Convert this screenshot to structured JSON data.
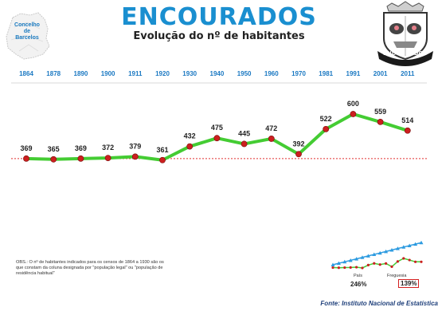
{
  "header": {
    "title": "ENCOURADOS",
    "subtitle": "Evolução do nº de habitantes"
  },
  "logo": {
    "line1": "Concelho",
    "line2": "de",
    "line3": "Barcelos"
  },
  "crest": {
    "label": "ENCOURADOS"
  },
  "chart_data": {
    "type": "line",
    "categories": [
      "1864",
      "1878",
      "1890",
      "1900",
      "1911",
      "1920",
      "1930",
      "1940",
      "1950",
      "1960",
      "1970",
      "1981",
      "1991",
      "2001",
      "2011"
    ],
    "values": [
      369,
      365,
      369,
      372,
      379,
      361,
      432,
      475,
      445,
      472,
      392,
      522,
      600,
      559,
      514
    ],
    "reference_value": 369,
    "colors": {
      "line": "#44cc33",
      "marker": "#cc1f1f",
      "axis_labels": "#1a78c2",
      "reference": "#e23030"
    }
  },
  "inset": {
    "legend": [
      "País",
      "Freguesia"
    ],
    "country_growth": "246%",
    "parish_growth": "139%",
    "colors": {
      "country": "#2d9be0",
      "parish": "#44cc33",
      "parish_marker": "#cc1f1f"
    }
  },
  "note": "OBS.: O nº de habitantes indicados para os censos de 1864 a 1930 são os que constam da coluna designada por \"população legal\" ou \"população de residência habitual\"",
  "source": "Fonte: Instituto Nacional de Estatística"
}
